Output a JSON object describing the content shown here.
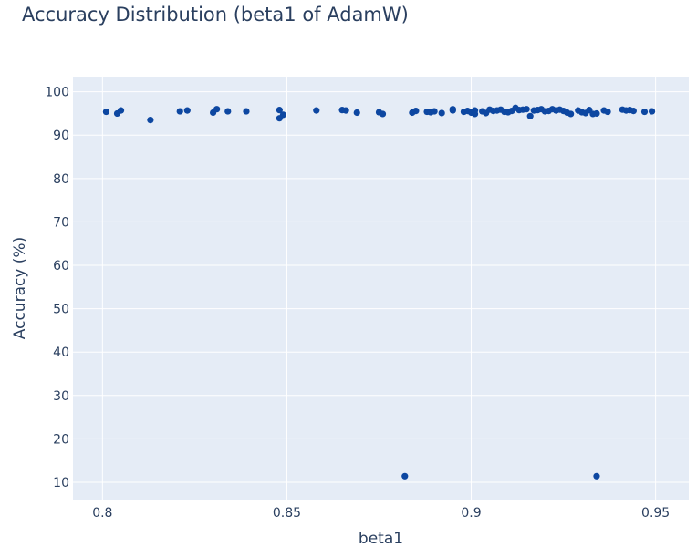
{
  "chart_data": {
    "type": "scatter",
    "title": "Accuracy Distribution (beta1 of AdamW)",
    "xlabel": "beta1",
    "ylabel": "Accuracy (%)",
    "xlim": [
      0.792,
      0.959
    ],
    "ylim": [
      6,
      103.5
    ],
    "xticks": [
      0.8,
      0.85,
      0.9,
      0.95
    ],
    "xtick_labels": [
      "0.8",
      "0.85",
      "0.9",
      "0.95"
    ],
    "yticks": [
      10,
      20,
      30,
      40,
      50,
      60,
      70,
      80,
      90,
      100
    ],
    "ytick_labels": [
      "10",
      "20",
      "30",
      "40",
      "50",
      "60",
      "70",
      "80",
      "90",
      "100"
    ],
    "grid": true,
    "legend": false,
    "colors": {
      "marker": "#0d47a1",
      "plot_background": "#e5ecf6",
      "grid": "#ffffff",
      "text": "#2a3f5f"
    },
    "x": [
      0.801,
      0.804,
      0.805,
      0.813,
      0.821,
      0.823,
      0.83,
      0.831,
      0.834,
      0.839,
      0.848,
      0.848,
      0.849,
      0.858,
      0.865,
      0.866,
      0.869,
      0.875,
      0.876,
      0.882,
      0.884,
      0.885,
      0.888,
      0.889,
      0.89,
      0.892,
      0.895,
      0.895,
      0.898,
      0.899,
      0.9,
      0.901,
      0.901,
      0.903,
      0.904,
      0.905,
      0.906,
      0.907,
      0.908,
      0.909,
      0.91,
      0.911,
      0.912,
      0.913,
      0.914,
      0.915,
      0.916,
      0.917,
      0.918,
      0.919,
      0.92,
      0.921,
      0.922,
      0.923,
      0.924,
      0.925,
      0.926,
      0.927,
      0.929,
      0.93,
      0.931,
      0.932,
      0.933,
      0.934,
      0.934,
      0.936,
      0.937,
      0.941,
      0.942,
      0.943,
      0.944,
      0.947,
      0.949
    ],
    "y": [
      95.4,
      95.0,
      95.7,
      93.5,
      95.5,
      95.7,
      95.2,
      96.0,
      95.5,
      95.5,
      93.9,
      95.8,
      94.7,
      95.7,
      95.8,
      95.7,
      95.2,
      95.3,
      94.9,
      11.4,
      95.2,
      95.6,
      95.4,
      95.3,
      95.5,
      95.1,
      95.7,
      96.0,
      95.4,
      95.6,
      95.2,
      95.7,
      94.9,
      95.5,
      95.1,
      95.9,
      95.6,
      95.7,
      95.9,
      95.4,
      95.3,
      95.6,
      96.3,
      95.8,
      95.9,
      96.0,
      94.4,
      95.7,
      95.8,
      96.0,
      95.5,
      95.6,
      96.0,
      95.7,
      95.9,
      95.6,
      95.2,
      94.9,
      95.7,
      95.3,
      95.1,
      95.8,
      94.9,
      11.4,
      95.0,
      95.7,
      95.4,
      95.9,
      95.7,
      95.8,
      95.6,
      95.4,
      95.5
    ]
  }
}
